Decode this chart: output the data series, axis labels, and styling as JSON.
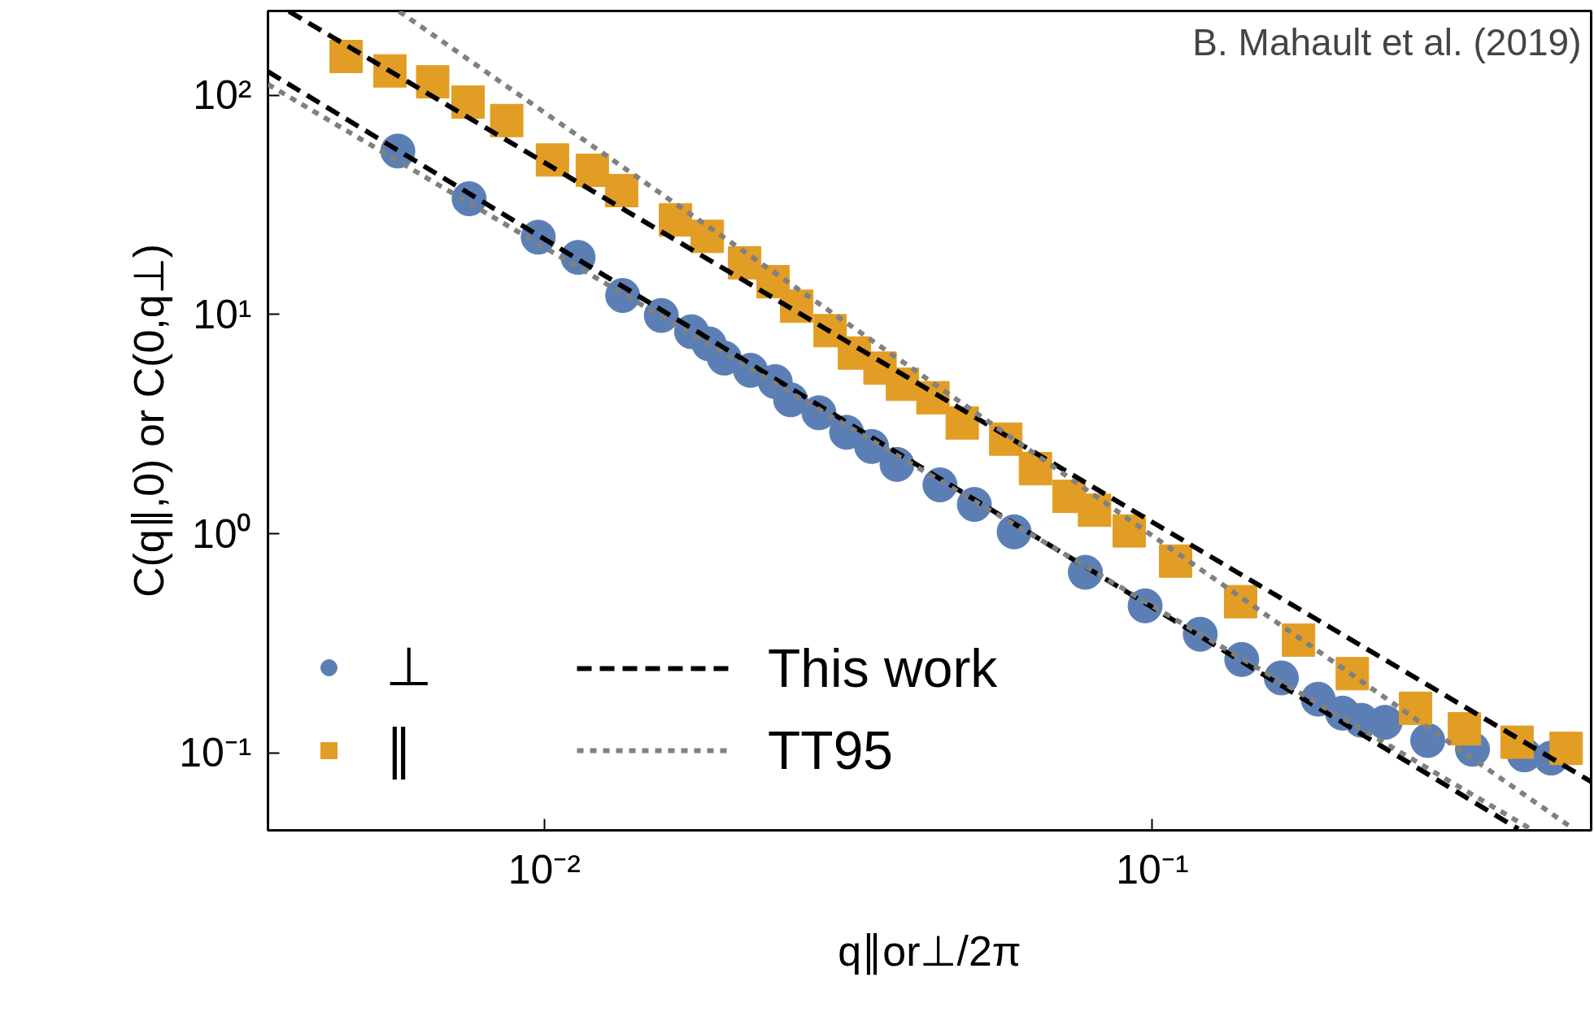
{
  "chart_data": {
    "type": "scatter",
    "xlabel": "q∥or⊥/2π",
    "ylabel": "C(q∥,0) or C(0,q⊥)",
    "annotations": [
      "B. Mahault et al. (2019)"
    ],
    "log": "xy",
    "grid": false,
    "legend": "bottom left",
    "xlim": [
      0.00351,
      0.527
    ],
    "ylim": [
      0.0444,
      242
    ],
    "xticks": [
      {
        "value": 0.01,
        "label": "10⁻²"
      },
      {
        "value": 0.1,
        "label": "10⁻¹"
      }
    ],
    "yticks": [
      {
        "value": 0.1,
        "label": "10⁻¹"
      },
      {
        "value": 1,
        "label": "10⁰"
      },
      {
        "value": 10,
        "label": "10¹"
      },
      {
        "value": 100,
        "label": "10²"
      }
    ],
    "series": [
      {
        "name": "⊥",
        "type": "scatter",
        "marker": "circle",
        "color": "#5b7fb5",
        "x": [
          0.00574,
          0.00752,
          0.00977,
          0.01136,
          0.01345,
          0.01557,
          0.01746,
          0.01866,
          0.01977,
          0.02183,
          0.02397,
          0.02541,
          0.02829,
          0.03141,
          0.03453,
          0.03802,
          0.04474,
          0.05096,
          0.05925,
          0.0776,
          0.09731,
          0.1199,
          0.1403,
          0.163,
          0.1874,
          0.2055,
          0.2208,
          0.2415,
          0.2838,
          0.3362,
          0.4093,
          0.4529
        ],
        "values": [
          55.6,
          33.7,
          22.5,
          18.2,
          12.2,
          9.89,
          8.34,
          7.34,
          6.32,
          5.56,
          4.94,
          4.08,
          3.56,
          2.9,
          2.5,
          2.07,
          1.67,
          1.36,
          1.02,
          0.667,
          0.469,
          0.348,
          0.267,
          0.22,
          0.176,
          0.152,
          0.141,
          0.138,
          0.114,
          0.104,
          0.098,
          0.0948
        ]
      },
      {
        "name": "∥",
        "type": "scatter",
        "marker": "square",
        "color": "#e29d25",
        "x": [
          0.00472,
          0.00557,
          0.00655,
          0.00749,
          0.00867,
          0.01031,
          0.01199,
          0.0134,
          0.01643,
          0.01853,
          0.02135,
          0.02378,
          0.026,
          0.02951,
          0.03236,
          0.03565,
          0.03882,
          0.04356,
          0.04867,
          0.05741,
          0.06423,
          0.07295,
          0.08035,
          0.09161,
          0.1092,
          0.1397,
          0.174,
          0.2133,
          0.271,
          0.3261,
          0.3981,
          0.4794
        ],
        "values": [
          150,
          129,
          115,
          92.9,
          76.6,
          50.6,
          45.4,
          36.7,
          27.0,
          22.7,
          17.2,
          14.1,
          10.9,
          8.43,
          6.67,
          5.69,
          4.8,
          4.17,
          3.2,
          2.7,
          1.98,
          1.48,
          1.28,
          1.03,
          0.75,
          0.49,
          0.327,
          0.23,
          0.16,
          0.129,
          0.112,
          0.105
        ]
      },
      {
        "name": "This work",
        "type": "line",
        "line_style": "dashed",
        "color": "#000000",
        "x": [
          0.0038,
          0.527
        ],
        "values": [
          241,
          0.074
        ]
      },
      {
        "type": "line",
        "line_style": "dashed",
        "color": "#000000",
        "x": [
          0.00351,
          0.4
        ],
        "values": [
          128,
          0.045
        ]
      },
      {
        "name": "TT95",
        "type": "line",
        "line_style": "dotted",
        "color": "#808080",
        "x": [
          0.00577,
          0.491
        ],
        "values": [
          241,
          0.0454
        ]
      },
      {
        "type": "line",
        "line_style": "dotted",
        "color": "#808080",
        "x": [
          0.00351,
          0.417
        ],
        "values": [
          112,
          0.0454
        ]
      }
    ]
  }
}
